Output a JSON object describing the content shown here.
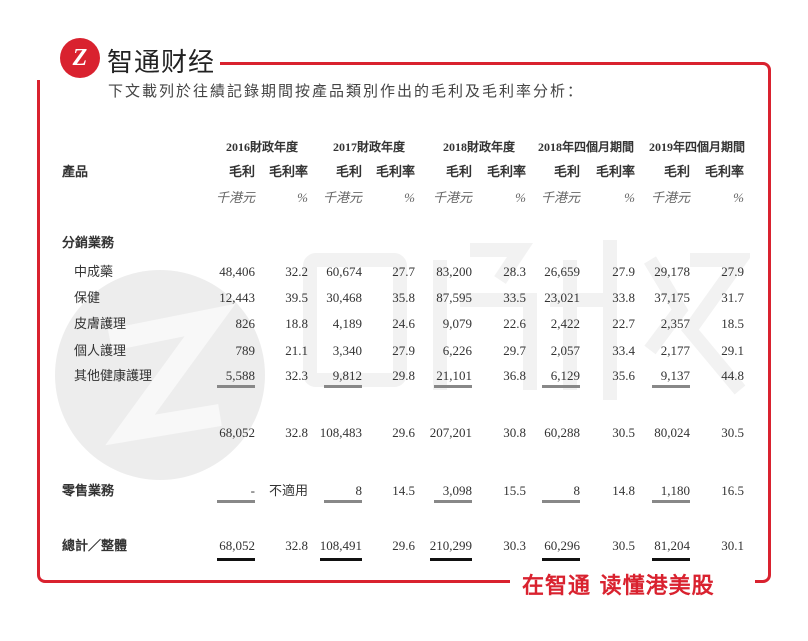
{
  "brand": {
    "name": "智通财经",
    "logo_letter": "Z",
    "slogan": "在智通 读懂港美股",
    "accent": "#d9222f"
  },
  "intro": "下文載列於往績記錄期間按產品類別作出的毛利及毛利率分析：",
  "table": {
    "product_header": "產品",
    "periods": [
      "2016財政年度",
      "2017財政年度",
      "2018財政年度",
      "2018年四個月期間",
      "2019年四個月期間"
    ],
    "sub_headers": {
      "gp": "毛利",
      "rate": "毛利率"
    },
    "units": {
      "gp": "千港元",
      "rate": "%"
    },
    "section_distribution": "分銷業務",
    "rows": [
      {
        "label": "中成藥",
        "values": [
          "48,406",
          "32.2",
          "60,674",
          "27.7",
          "83,200",
          "28.3",
          "26,659",
          "27.9",
          "29,178",
          "27.9"
        ]
      },
      {
        "label": "保健",
        "values": [
          "12,443",
          "39.5",
          "30,468",
          "35.8",
          "87,595",
          "33.5",
          "23,021",
          "33.8",
          "37,175",
          "31.7"
        ]
      },
      {
        "label": "皮膚護理",
        "values": [
          "826",
          "18.8",
          "4,189",
          "24.6",
          "9,079",
          "22.6",
          "2,422",
          "22.7",
          "2,357",
          "18.5"
        ]
      },
      {
        "label": "個人護理",
        "values": [
          "789",
          "21.1",
          "3,340",
          "27.9",
          "6,226",
          "29.7",
          "2,057",
          "33.4",
          "2,177",
          "29.1"
        ]
      },
      {
        "label": "其他健康護理",
        "values": [
          "5,588",
          "32.3",
          "9,812",
          "29.8",
          "21,101",
          "36.8",
          "6,129",
          "35.6",
          "9,137",
          "44.8"
        ]
      }
    ],
    "subtotal": [
      "68,052",
      "32.8",
      "108,483",
      "29.6",
      "207,201",
      "30.8",
      "60,288",
      "30.5",
      "80,024",
      "30.5"
    ],
    "retail": {
      "label": "零售業務",
      "values": [
        "-",
        "不適用",
        "8",
        "14.5",
        "3,098",
        "15.5",
        "8",
        "14.8",
        "1,180",
        "16.5"
      ]
    },
    "total": {
      "label": "總計／整體",
      "values": [
        "68,052",
        "32.8",
        "108,491",
        "29.6",
        "210,299",
        "30.3",
        "60,296",
        "30.5",
        "81,204",
        "30.1"
      ]
    }
  }
}
